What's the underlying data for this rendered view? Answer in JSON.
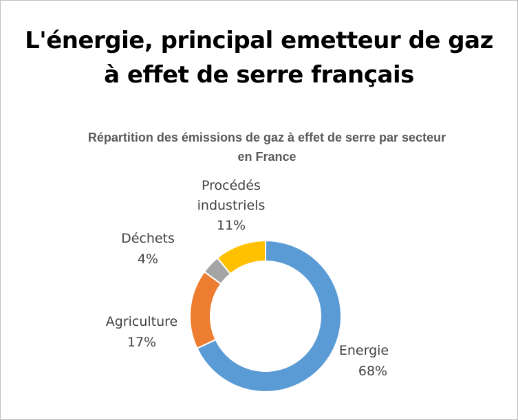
{
  "title": {
    "line1": "L'énergie, principal emetteur de gaz",
    "line2": "à effet de serre français"
  },
  "chart_data": {
    "type": "pie",
    "title_lines": [
      "Répartition des émissions de gaz à effet de serre par secteur",
      "en France"
    ],
    "slices": [
      {
        "name": "Energie",
        "value": 68,
        "label": "68%",
        "color": "#5b9bd5"
      },
      {
        "name": "Agriculture",
        "value": 17,
        "label": "17%",
        "color": "#ed7d31"
      },
      {
        "name": "Déchets",
        "value": 4,
        "label": "4%",
        "color": "#a5a5a5"
      },
      {
        "name": "Procédés industriels",
        "value": 11,
        "label": "11%",
        "color": "#ffc000"
      }
    ]
  }
}
